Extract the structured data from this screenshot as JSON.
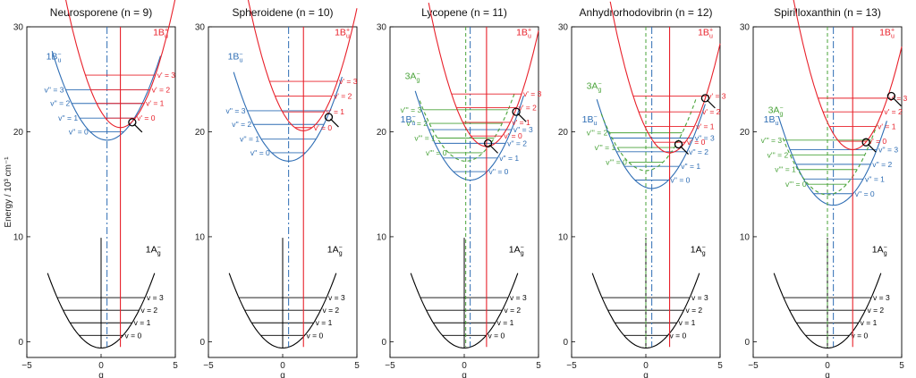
{
  "colors": {
    "ground": "#000000",
    "bu_minus": "#2e6db4",
    "bu_plus": "#e8202a",
    "ag_minus": "#4aa33a"
  },
  "axes": {
    "ylabel": "Energy / 10³ cm⁻¹",
    "xlabel": "q",
    "xlim": [
      -5,
      5
    ],
    "ylim": [
      -1.5,
      30
    ],
    "xticks": [
      "−5",
      "0",
      "5"
    ],
    "yticks": [
      "0",
      "10",
      "20",
      "30"
    ]
  },
  "chart_data": [
    {
      "type": "line",
      "title": "Neurosporene (n = 9)",
      "ground": {
        "label": "1A⁻g",
        "min_x": 0,
        "min_e": -0.6,
        "curvature": 0.55,
        "levels": [
          "v = 0",
          "v = 1",
          "v = 2",
          "v = 3"
        ],
        "level_e": [
          0.6,
          1.8,
          3.0,
          4.2
        ]
      },
      "bu_minus": {
        "label": "1B⁻u",
        "min_x": 0.4,
        "min_e": 19.2,
        "curvature": 0.62,
        "levels": [
          "v'' = 0",
          "v'' = 1",
          "v'' = 2",
          "v'' = 3"
        ],
        "level_e": [
          20.0,
          21.3,
          22.7,
          24.0
        ]
      },
      "bu_plus": {
        "label": "1B⁺u",
        "min_x": 1.3,
        "min_e": 20.4,
        "curvature": 0.9,
        "levels": [
          "v' = 0",
          "v' = 1",
          "v' = 2",
          "v' = 3"
        ],
        "level_e": [
          21.3,
          22.7,
          24.0,
          25.4
        ]
      },
      "crossing": {
        "q": 2.1,
        "e": 20.9
      }
    },
    {
      "type": "line",
      "title": "Spheroidene (n = 10)",
      "ground": {
        "label": "1A⁻g",
        "min_x": 0,
        "min_e": -0.6,
        "curvature": 0.55,
        "levels": [
          "v = 0",
          "v = 1",
          "v = 2",
          "v = 3"
        ],
        "level_e": [
          0.6,
          1.8,
          3.0,
          4.2
        ]
      },
      "bu_minus": {
        "label": "1B⁻u",
        "min_x": 0.4,
        "min_e": 17.2,
        "curvature": 0.62,
        "levels": [
          "v'' = 0",
          "v'' = 1",
          "v'' = 2",
          "v'' = 3"
        ],
        "level_e": [
          18.0,
          19.3,
          20.7,
          22.0
        ]
      },
      "bu_plus": {
        "label": "1B⁺u",
        "min_x": 1.4,
        "min_e": 20.1,
        "curvature": 0.9,
        "levels": [
          "v' = 0",
          "v' = 1",
          "v' = 2",
          "v' = 3"
        ],
        "level_e": [
          20.4,
          21.9,
          23.4,
          24.8
        ]
      },
      "crossing": {
        "q": 3.1,
        "e": 21.4
      }
    },
    {
      "type": "line",
      "title": "Lycopene (n = 11)",
      "ground": {
        "label": "1A⁻g",
        "min_x": 0,
        "min_e": -0.6,
        "curvature": 0.55,
        "levels": [
          "v = 0",
          "v = 1",
          "v = 2",
          "v = 3"
        ],
        "level_e": [
          0.6,
          1.8,
          3.0,
          4.2
        ]
      },
      "bu_minus": {
        "label": "1B⁻u",
        "min_x": 0.4,
        "min_e": 15.4,
        "curvature": 0.62,
        "levels": [
          "v'' = 0",
          "v'' = 1",
          "v'' = 2",
          "v'' = 3"
        ],
        "level_e": [
          16.2,
          17.5,
          18.9,
          20.2
        ]
      },
      "ag_minus": {
        "label": "3A⁻g",
        "min_x": 0.1,
        "min_e": 17.2,
        "curvature": 0.6,
        "levels": [
          "v''' = 0",
          "v''' = 1",
          "v''' = 2",
          "v''' = 3"
        ],
        "level_e": [
          18.0,
          19.4,
          20.8,
          22.1
        ]
      },
      "bu_plus": {
        "label": "1B⁺u",
        "min_x": 1.5,
        "min_e": 18.6,
        "curvature": 0.9,
        "levels": [
          "v' = 0",
          "v' = 1",
          "v' = 2",
          "v' = 3"
        ],
        "level_e": [
          19.6,
          20.9,
          22.3,
          23.6
        ]
      },
      "crossing": {
        "q": 3.5,
        "e": 21.9
      },
      "crossing2": {
        "q": 1.6,
        "e": 18.9
      }
    },
    {
      "type": "line",
      "title": "Anhydrorhodovibrin (n = 12)",
      "ground": {
        "label": "1A⁻g",
        "min_x": 0,
        "min_e": -0.6,
        "curvature": 0.55,
        "levels": [
          "v = 0",
          "v = 1",
          "v = 2",
          "v = 3"
        ],
        "level_e": [
          0.6,
          1.8,
          3.0,
          4.2
        ]
      },
      "bu_minus": {
        "label": "1B⁻u",
        "min_x": 0.4,
        "min_e": 14.6,
        "curvature": 0.62,
        "levels": [
          "v'' = 0",
          "v'' = 1",
          "v'' = 2",
          "v'' = 3"
        ],
        "level_e": [
          15.4,
          16.7,
          18.1,
          19.4
        ]
      },
      "ag_minus": {
        "label": "3A⁻g",
        "min_x": 0.0,
        "min_e": 16.3,
        "curvature": 0.6,
        "levels": [
          "v''' = 0",
          "v''' = 1",
          "v''' = 2"
        ],
        "level_e": [
          17.1,
          18.5,
          19.9
        ]
      },
      "bu_plus": {
        "label": "1B⁺u",
        "min_x": 1.6,
        "min_e": 18.0,
        "curvature": 0.9,
        "levels": [
          "v' = 0",
          "v' = 1",
          "v' = 2",
          "v' = 3"
        ],
        "level_e": [
          19.0,
          20.5,
          21.9,
          23.4
        ]
      },
      "crossing": {
        "q": 4.0,
        "e": 23.2
      },
      "crossing2": {
        "q": 2.2,
        "e": 18.8
      }
    },
    {
      "type": "line",
      "title": "Spirilloxanthin (n = 13)",
      "ground": {
        "label": "1A⁻g",
        "min_x": 0,
        "min_e": -0.6,
        "curvature": 0.55,
        "levels": [
          "v = 0",
          "v = 1",
          "v = 2",
          "v = 3"
        ],
        "level_e": [
          0.6,
          1.8,
          3.0,
          4.2
        ]
      },
      "bu_minus": {
        "label": "1B⁻u",
        "min_x": 0.4,
        "min_e": 13.0,
        "curvature": 0.62,
        "levels": [
          "v'' = 0",
          "v'' = 1",
          "v'' = 2",
          "v'' = 3"
        ],
        "level_e": [
          14.1,
          15.5,
          16.9,
          18.3
        ]
      },
      "ag_minus": {
        "label": "3A⁻g",
        "min_x": 0.0,
        "min_e": 14.0,
        "curvature": 0.6,
        "levels": [
          "v''' = 0",
          "v''' = 1",
          "v''' = 2",
          "v''' = 3"
        ],
        "level_e": [
          15.0,
          16.4,
          17.8,
          19.2
        ]
      },
      "bu_plus": {
        "label": "1B⁺u",
        "min_x": 1.7,
        "min_e": 18.3,
        "curvature": 0.9,
        "levels": [
          "v' = 0",
          "v' = 1",
          "v' = 2",
          "v' = 3"
        ],
        "level_e": [
          19.1,
          20.5,
          21.9,
          23.2
        ]
      },
      "crossing": {
        "q": 4.3,
        "e": 23.4
      },
      "crossing2": {
        "q": 2.6,
        "e": 19.0
      }
    }
  ]
}
